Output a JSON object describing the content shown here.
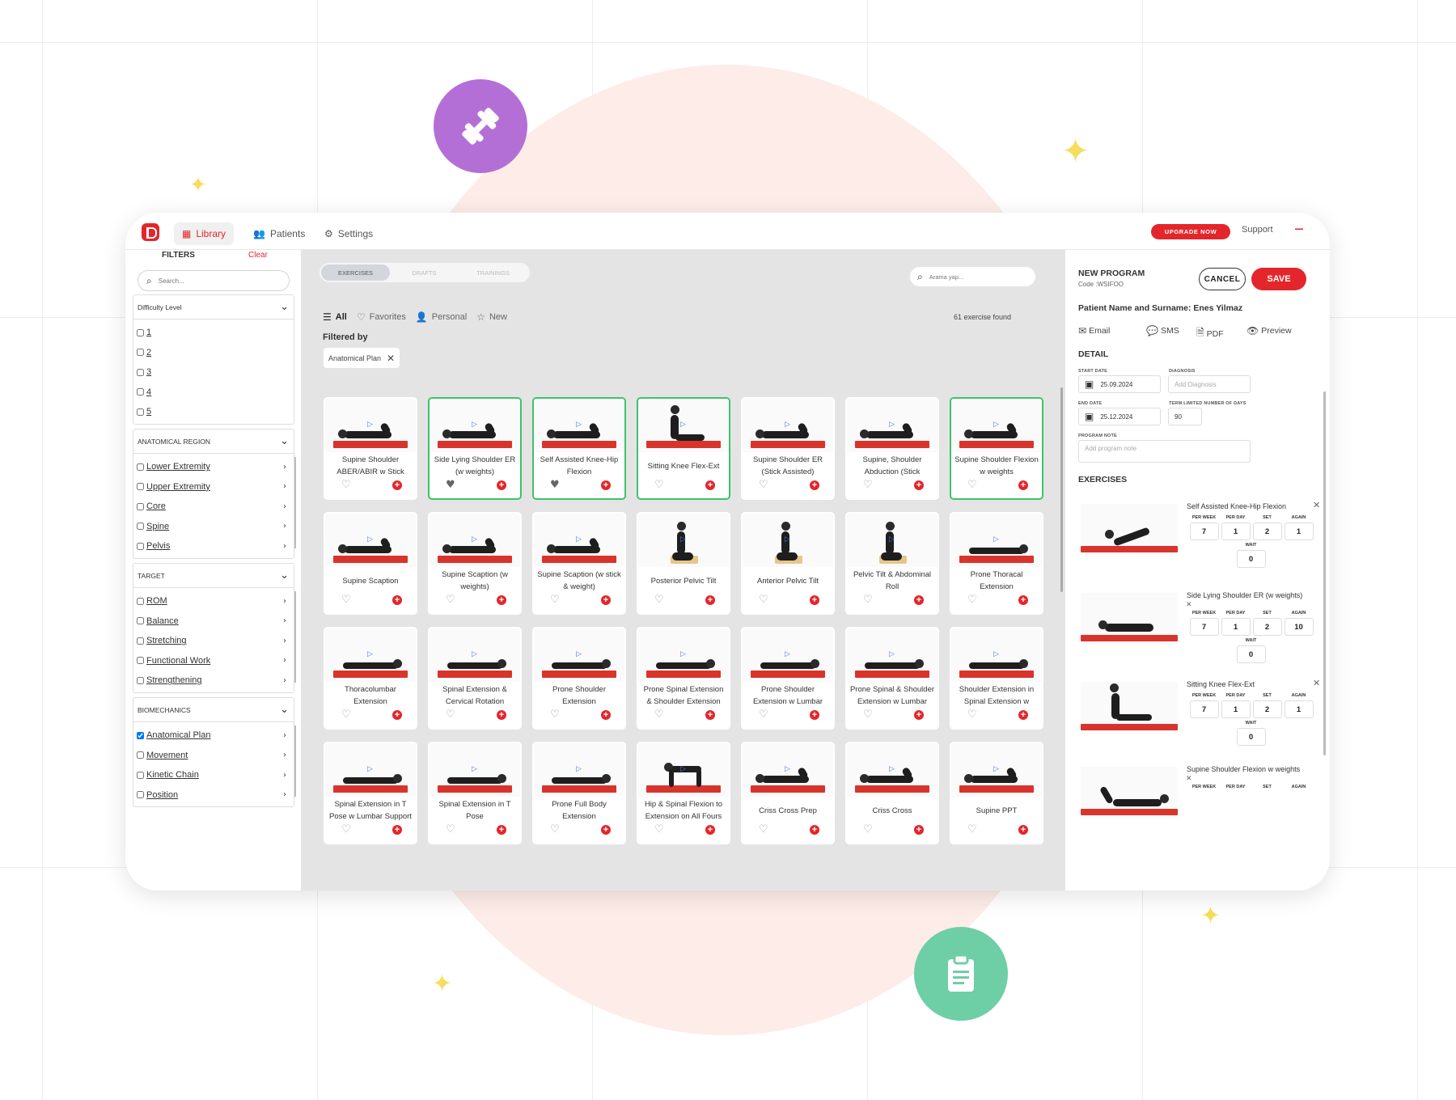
{
  "nav": {
    "library": "Library",
    "patients": "Patients",
    "settings": "Settings",
    "upgrade": "UPGRADE NOW",
    "support": "Support"
  },
  "sidebar": {
    "title": "FILTERS",
    "clear": "Clear",
    "search_placeholder": "Search...",
    "groups": [
      {
        "title": "Difficulty Level",
        "items": [
          {
            "label": "1",
            "checked": false
          },
          {
            "label": "2",
            "checked": false
          },
          {
            "label": "3",
            "checked": false
          },
          {
            "label": "4",
            "checked": false
          },
          {
            "label": "5",
            "checked": false
          }
        ]
      },
      {
        "title": "ANATOMICAL REGION",
        "items": [
          {
            "label": "Lower Extremity",
            "checked": false
          },
          {
            "label": "Upper Extremity",
            "checked": false
          },
          {
            "label": "Core",
            "checked": false
          },
          {
            "label": "Spine",
            "checked": false
          },
          {
            "label": "Pelvis",
            "checked": false
          }
        ]
      },
      {
        "title": "TARGET",
        "items": [
          {
            "label": "ROM",
            "checked": false
          },
          {
            "label": "Balance",
            "checked": false
          },
          {
            "label": "Stretching",
            "checked": false
          },
          {
            "label": "Functional Work",
            "checked": false
          },
          {
            "label": "Strengthening",
            "checked": false
          }
        ]
      },
      {
        "title": "BIOMECHANICS",
        "items": [
          {
            "label": "Anatomical Plan",
            "checked": true
          },
          {
            "label": "Movement",
            "checked": false
          },
          {
            "label": "Kinetic Chain",
            "checked": false
          },
          {
            "label": "Position",
            "checked": false
          }
        ]
      }
    ]
  },
  "main": {
    "segments": [
      "EXERCISES",
      "DRAFTS",
      "TRAININGS"
    ],
    "search_placeholder": "Arama yap...",
    "tabs": [
      {
        "label": "All",
        "icon": "list-icon",
        "active": true
      },
      {
        "label": "Favorites",
        "icon": "heart-icon",
        "active": false
      },
      {
        "label": "Personal",
        "icon": "user-icon",
        "active": false
      },
      {
        "label": "New",
        "icon": "star-icon",
        "active": false
      }
    ],
    "found": "61 exercise found",
    "filtered_by": "Filtered by",
    "chip": "Anatomical Plan",
    "exercises": [
      {
        "name": "Supine Shoulder ABER/ABIR w Stick",
        "selected": false,
        "fav": false
      },
      {
        "name": "Side Lying Shoulder ER (w weights)",
        "selected": true,
        "fav": true
      },
      {
        "name": "Self Assisted Knee-Hip Flexion",
        "selected": true,
        "fav": true
      },
      {
        "name": "Sitting Knee Flex-Ext",
        "selected": true,
        "fav": false
      },
      {
        "name": "Supine Shoulder ER (Stick Assisted)",
        "selected": false,
        "fav": false
      },
      {
        "name": "Supine, Shoulder Abduction (Stick",
        "selected": false,
        "fav": false
      },
      {
        "name": "Supine Shoulder Flexion w weights",
        "selected": true,
        "fav": false
      },
      {
        "name": "Supine Scaption",
        "selected": false,
        "fav": false
      },
      {
        "name": "Supine Scaption (w weights)",
        "selected": false,
        "fav": false
      },
      {
        "name": "Supine Scaption (w stick & weight)",
        "selected": false,
        "fav": false
      },
      {
        "name": "Posterior Pelvic Tilt",
        "selected": false,
        "fav": false
      },
      {
        "name": "Anterior Pelvic Tilt",
        "selected": false,
        "fav": false
      },
      {
        "name": "Pelvic Tilt & Abdominal Roll",
        "selected": false,
        "fav": false
      },
      {
        "name": "Prone Thoracal Extension",
        "selected": false,
        "fav": false
      },
      {
        "name": "Thoracolumbar Extension",
        "selected": false,
        "fav": false
      },
      {
        "name": "Spinal Extension & Cervical Rotation",
        "selected": false,
        "fav": false
      },
      {
        "name": "Prone Shoulder Extension",
        "selected": false,
        "fav": false
      },
      {
        "name": "Prone Spinal Extension & Shoulder Extension",
        "selected": false,
        "fav": false
      },
      {
        "name": "Prone Shoulder Extension w Lumbar",
        "selected": false,
        "fav": false
      },
      {
        "name": "Prone Spinal & Shoulder Extension w Lumbar",
        "selected": false,
        "fav": false
      },
      {
        "name": "Shoulder Extension in Spinal Extension w",
        "selected": false,
        "fav": false
      },
      {
        "name": "Spinal Extension in T Pose w Lumbar Support",
        "selected": false,
        "fav": false
      },
      {
        "name": "Spinal Extension in T Pose",
        "selected": false,
        "fav": false
      },
      {
        "name": "Prone Full Body Extension",
        "selected": false,
        "fav": false
      },
      {
        "name": "Hip & Spinal Flexion to Extension on All Fours",
        "selected": false,
        "fav": false
      },
      {
        "name": "Criss Cross Prep",
        "selected": false,
        "fav": false
      },
      {
        "name": "Criss Cross",
        "selected": false,
        "fav": false
      },
      {
        "name": "Supine PPT",
        "selected": false,
        "fav": false
      }
    ]
  },
  "panel": {
    "title": "NEW PROGRAM",
    "code": "Code :WSIFOO",
    "cancel": "CANCEL",
    "save": "SAVE",
    "patient": "Patient Name and Surname: Enes Yilmaz",
    "share": [
      {
        "label": "Email",
        "icon": "mail-icon"
      },
      {
        "label": "SMS",
        "icon": "chat-icon"
      },
      {
        "label": "PDF",
        "icon": "file-icon"
      },
      {
        "label": "Preview",
        "icon": "eye-icon"
      }
    ],
    "detail": "DETAIL",
    "start_date_label": "START DATE",
    "start_date": "25.09.2024",
    "diagnosis_label": "DIAGNOSIS",
    "diagnosis_placeholder": "Add Diagnosis",
    "end_date_label": "END DATE",
    "end_date": "25.12.2024",
    "term_label": "TERM LIMITED NUMBER OF DAYS",
    "term": "90",
    "note_label": "PROGRAM NOTE",
    "note_placeholder": "Add program note",
    "exercises_title": "EXERCISES",
    "params": [
      "PER WEEK",
      "PER DAY",
      "SET",
      "AGAIN"
    ],
    "wait_label": "WAIT",
    "program": [
      {
        "name": "Self Assisted Knee-Hip Flexion",
        "values": [
          "7",
          "1",
          "2",
          "1"
        ],
        "wait": "0"
      },
      {
        "name": "Side Lying Shoulder ER (w weights)",
        "values": [
          "7",
          "1",
          "2",
          "10"
        ],
        "wait": "0"
      },
      {
        "name": "Sitting Knee Flex-Ext",
        "values": [
          "7",
          "1",
          "2",
          "1"
        ],
        "wait": "0"
      },
      {
        "name": "Supine Shoulder Flexion w weights",
        "values": [
          "",
          "",
          "",
          ""
        ],
        "wait": ""
      }
    ]
  },
  "colors": {
    "accent": "#e3262b",
    "selected": "#3dc36b",
    "dumbbell_badge": "#b46fd6",
    "clipboard_badge": "#6ecfa6",
    "sparkle": "#f6dd5b"
  },
  "decor_icons": [
    "dumbbell-icon",
    "clipboard-icon",
    "sparkle-icon"
  ]
}
